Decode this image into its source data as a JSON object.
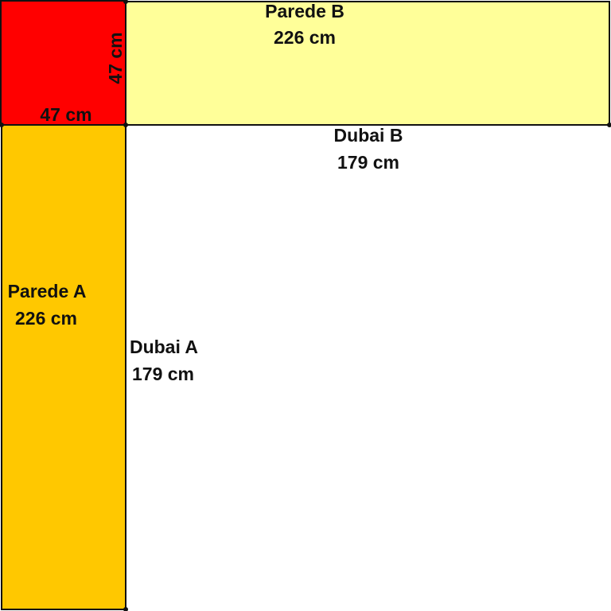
{
  "corner": {
    "width_label": "47 cm",
    "height_label": "47 cm"
  },
  "walls": [
    {
      "name": "Parede A",
      "length": "226 cm"
    },
    {
      "name": "Parede B",
      "length": "226 cm"
    }
  ],
  "areas": [
    {
      "name": "Dubai A",
      "length": "179 cm"
    },
    {
      "name": "Dubai B",
      "length": "179 cm"
    }
  ]
}
